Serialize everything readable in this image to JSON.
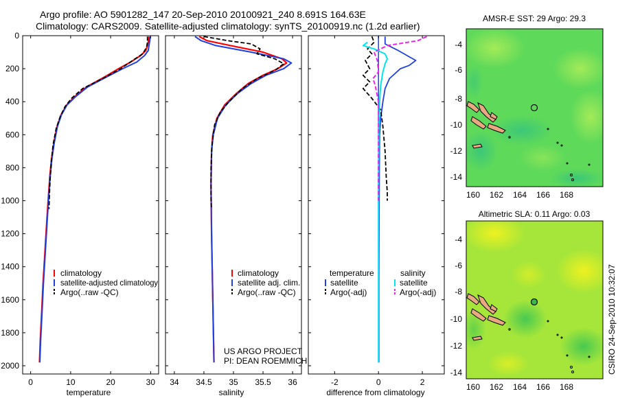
{
  "header": {
    "title_line1": "Argo profile: AO 5901282_147 20-Sep-2010 20100921_240 8.691S 164.63E",
    "title_line2": "Climatology: CARS2009. Satellite-adjusted climatology: synTS_20100919.nc (1.2d earlier)"
  },
  "credits": {
    "project": "US ARGO PROJECT",
    "pi": "PI: DEAN ROEMMICH",
    "stamp": "CSIRO 24-Sep-2010 10:32:07"
  },
  "colors": {
    "climatology": "#ff0000",
    "satellite": "#1f3fe0",
    "argo": "#000000",
    "sat_diff": "#00e5ee",
    "argo_sal_diff": "#ee22ee",
    "map_island": "#e8a882"
  },
  "maps": {
    "sst": {
      "title": "AMSR-E SST: 29 Argo: 29.3",
      "xticks": [
        "160",
        "162",
        "164",
        "166",
        "168"
      ],
      "yticks": [
        "-4",
        "-6",
        "-8",
        "-10",
        "-12",
        "-14"
      ],
      "float_marker": {
        "lon": 164.63,
        "lat": -8.691
      }
    },
    "sla": {
      "title": "Altimetric SLA: 0.11 Argo: 0.03",
      "xticks": [
        "160",
        "162",
        "164",
        "166",
        "168"
      ],
      "yticks": [
        "-4",
        "-6",
        "-8",
        "-10",
        "-12",
        "-14"
      ],
      "float_marker": {
        "lon": 164.63,
        "lat": -8.691
      }
    }
  },
  "chart_data": [
    {
      "type": "line",
      "id": "temperature",
      "xlabel": "temperature",
      "xlim": [
        -2,
        32
      ],
      "ylim": [
        2050,
        0
      ],
      "y_reversed": true,
      "xticks": [
        0,
        10,
        20,
        30
      ],
      "yticks": [
        0,
        200,
        400,
        600,
        800,
        1000,
        1200,
        1400,
        1600,
        1800,
        2000
      ],
      "legend": {
        "position": "bottom-right",
        "entries": [
          "climatology",
          "satellite-adjusted climatology",
          "Argo(..raw -QC)"
        ]
      },
      "series": [
        {
          "name": "climatology",
          "style": "solid",
          "points": [
            [
              29.6,
              5
            ],
            [
              29.5,
              30
            ],
            [
              29.2,
              60
            ],
            [
              28.8,
              90
            ],
            [
              27.5,
              120
            ],
            [
              25.0,
              160
            ],
            [
              22.0,
              200
            ],
            [
              18.5,
              250
            ],
            [
              14.0,
              310
            ],
            [
              11.0,
              370
            ],
            [
              9.0,
              420
            ],
            [
              7.6,
              480
            ],
            [
              6.6,
              550
            ],
            [
              5.8,
              650
            ],
            [
              5.2,
              750
            ],
            [
              4.8,
              850
            ],
            [
              4.5,
              950
            ],
            [
              4.1,
              1100
            ],
            [
              3.6,
              1300
            ],
            [
              3.1,
              1500
            ],
            [
              2.7,
              1700
            ],
            [
              2.4,
              1850
            ],
            [
              2.2,
              1980
            ]
          ]
        },
        {
          "name": "satellite-adjusted climatology",
          "style": "solid",
          "points": [
            [
              29.9,
              5
            ],
            [
              29.8,
              30
            ],
            [
              29.6,
              60
            ],
            [
              29.4,
              90
            ],
            [
              28.5,
              120
            ],
            [
              26.5,
              160
            ],
            [
              23.0,
              200
            ],
            [
              19.0,
              250
            ],
            [
              14.3,
              310
            ],
            [
              11.2,
              370
            ],
            [
              9.1,
              420
            ],
            [
              7.7,
              480
            ],
            [
              6.7,
              550
            ],
            [
              5.9,
              650
            ],
            [
              5.3,
              750
            ],
            [
              4.9,
              850
            ],
            [
              4.6,
              950
            ],
            [
              4.2,
              1100
            ],
            [
              3.7,
              1300
            ],
            [
              3.2,
              1500
            ],
            [
              2.8,
              1700
            ],
            [
              2.5,
              1850
            ],
            [
              2.3,
              1980
            ]
          ]
        },
        {
          "name": "Argo(..raw -QC)",
          "style": "dashed",
          "points": [
            [
              29.2,
              5
            ],
            [
              29.2,
              40
            ],
            [
              29.0,
              70
            ],
            [
              28.0,
              110
            ],
            [
              25.5,
              150
            ],
            [
              22.5,
              200
            ],
            [
              18.0,
              260
            ],
            [
              13.0,
              320
            ],
            [
              10.2,
              380
            ],
            [
              8.6,
              430
            ],
            [
              7.4,
              490
            ],
            [
              6.4,
              560
            ],
            [
              5.6,
              660
            ],
            [
              5.2,
              760
            ],
            [
              4.9,
              860
            ],
            [
              4.7,
              960
            ],
            [
              4.6,
              1050
            ]
          ]
        }
      ]
    },
    {
      "type": "line",
      "id": "salinity",
      "xlabel": "salinity",
      "xlim": [
        33.85,
        36.15
      ],
      "ylim": [
        2050,
        0
      ],
      "y_reversed": true,
      "xticks": [
        34,
        34.5,
        35,
        35.5,
        36
      ],
      "legend": {
        "position": "bottom-right",
        "entries": [
          "climatology",
          "satellite adj. clim.",
          "Argo(..raw -QC)"
        ]
      },
      "series": [
        {
          "name": "climatology",
          "style": "solid",
          "points": [
            [
              34.42,
              5
            ],
            [
              34.55,
              30
            ],
            [
              34.95,
              60
            ],
            [
              35.5,
              100
            ],
            [
              35.82,
              140
            ],
            [
              35.9,
              165
            ],
            [
              35.75,
              200
            ],
            [
              35.5,
              240
            ],
            [
              35.25,
              290
            ],
            [
              35.05,
              350
            ],
            [
              34.85,
              420
            ],
            [
              34.72,
              500
            ],
            [
              34.65,
              600
            ],
            [
              34.63,
              700
            ],
            [
              34.62,
              900
            ],
            [
              34.63,
              1200
            ],
            [
              34.65,
              1600
            ],
            [
              34.67,
              1980
            ]
          ]
        },
        {
          "name": "satellite adj. clim.",
          "style": "solid",
          "points": [
            [
              34.35,
              5
            ],
            [
              34.45,
              30
            ],
            [
              34.7,
              60
            ],
            [
              35.3,
              100
            ],
            [
              35.85,
              140
            ],
            [
              35.98,
              165
            ],
            [
              35.85,
              200
            ],
            [
              35.55,
              240
            ],
            [
              35.3,
              290
            ],
            [
              35.07,
              350
            ],
            [
              34.87,
              420
            ],
            [
              34.73,
              500
            ],
            [
              34.66,
              600
            ],
            [
              34.63,
              700
            ],
            [
              34.62,
              900
            ],
            [
              34.63,
              1200
            ],
            [
              34.65,
              1600
            ],
            [
              34.67,
              1980
            ]
          ]
        },
        {
          "name": "Argo(..raw -QC)",
          "style": "dashed",
          "points": [
            [
              34.5,
              5
            ],
            [
              34.9,
              30
            ],
            [
              35.3,
              50
            ],
            [
              35.45,
              80
            ],
            [
              35.4,
              110
            ],
            [
              35.7,
              140
            ],
            [
              35.85,
              170
            ],
            [
              35.7,
              210
            ],
            [
              35.4,
              260
            ],
            [
              35.15,
              320
            ],
            [
              34.95,
              390
            ],
            [
              34.78,
              460
            ],
            [
              34.68,
              540
            ],
            [
              34.64,
              650
            ],
            [
              34.62,
              800
            ],
            [
              34.62,
              1000
            ],
            [
              34.63,
              1050
            ]
          ]
        }
      ]
    },
    {
      "type": "line",
      "id": "difference",
      "xlabel": "difference from climatology",
      "xlim": [
        -3.2,
        3.0
      ],
      "ylim": [
        2050,
        0
      ],
      "y_reversed": true,
      "xticks": [
        -2,
        0,
        2
      ],
      "legend": {
        "position": "bottom",
        "columns": [
          {
            "header": "temperature",
            "entries": [
              "satellite",
              "Argo(-adj)"
            ]
          },
          {
            "header": "salinity",
            "entries": [
              "satellite",
              "Argo(-adj)"
            ]
          }
        ]
      },
      "series": [
        {
          "name": "temperature satellite",
          "style": "solid",
          "points": [
            [
              0.3,
              5
            ],
            [
              0.3,
              50
            ],
            [
              0.9,
              90
            ],
            [
              1.7,
              150
            ],
            [
              1.4,
              180
            ],
            [
              1.0,
              200
            ],
            [
              0.5,
              260
            ],
            [
              0.3,
              320
            ],
            [
              0.2,
              400
            ],
            [
              0.1,
              500
            ],
            [
              0.05,
              600
            ],
            [
              0.04,
              800
            ],
            [
              0.03,
              1000
            ],
            [
              0.02,
              1500
            ],
            [
              0.02,
              1980
            ]
          ]
        },
        {
          "name": "temperature Argo(-adj)",
          "style": "dashed",
          "points": [
            [
              -0.3,
              5
            ],
            [
              -0.2,
              40
            ],
            [
              -0.5,
              80
            ],
            [
              -0.3,
              110
            ],
            [
              -0.6,
              150
            ],
            [
              -0.4,
              200
            ],
            [
              -0.7,
              240
            ],
            [
              -0.4,
              280
            ],
            [
              -0.7,
              320
            ],
            [
              -0.3,
              380
            ],
            [
              0.1,
              450
            ],
            [
              0.2,
              550
            ],
            [
              0.3,
              700
            ],
            [
              0.35,
              850
            ],
            [
              0.4,
              950
            ],
            [
              0.4,
              1000
            ]
          ]
        },
        {
          "name": "salinity satellite",
          "style": "solid",
          "points": [
            [
              -0.5,
              40
            ],
            [
              -0.7,
              60
            ],
            [
              -0.2,
              80
            ],
            [
              0.3,
              110
            ],
            [
              0.4,
              140
            ],
            [
              0.3,
              170
            ],
            [
              0.2,
              220
            ],
            [
              0.1,
              300
            ],
            [
              0.05,
              400
            ],
            [
              0.02,
              600
            ],
            [
              0.0,
              900
            ],
            [
              0.0,
              1500
            ],
            [
              0.0,
              1980
            ]
          ]
        },
        {
          "name": "salinity Argo(-adj)",
          "style": "dashed",
          "points": [
            [
              2.2,
              5
            ],
            [
              1.8,
              30
            ],
            [
              0.4,
              60
            ],
            [
              -0.2,
              100
            ],
            [
              -0.05,
              150
            ],
            [
              0.0,
              220
            ],
            [
              -0.25,
              260
            ],
            [
              -0.15,
              300
            ],
            [
              0.0,
              400
            ],
            [
              0.0,
              600
            ],
            [
              0.0,
              800
            ],
            [
              0.0,
              1000
            ]
          ]
        }
      ]
    }
  ]
}
